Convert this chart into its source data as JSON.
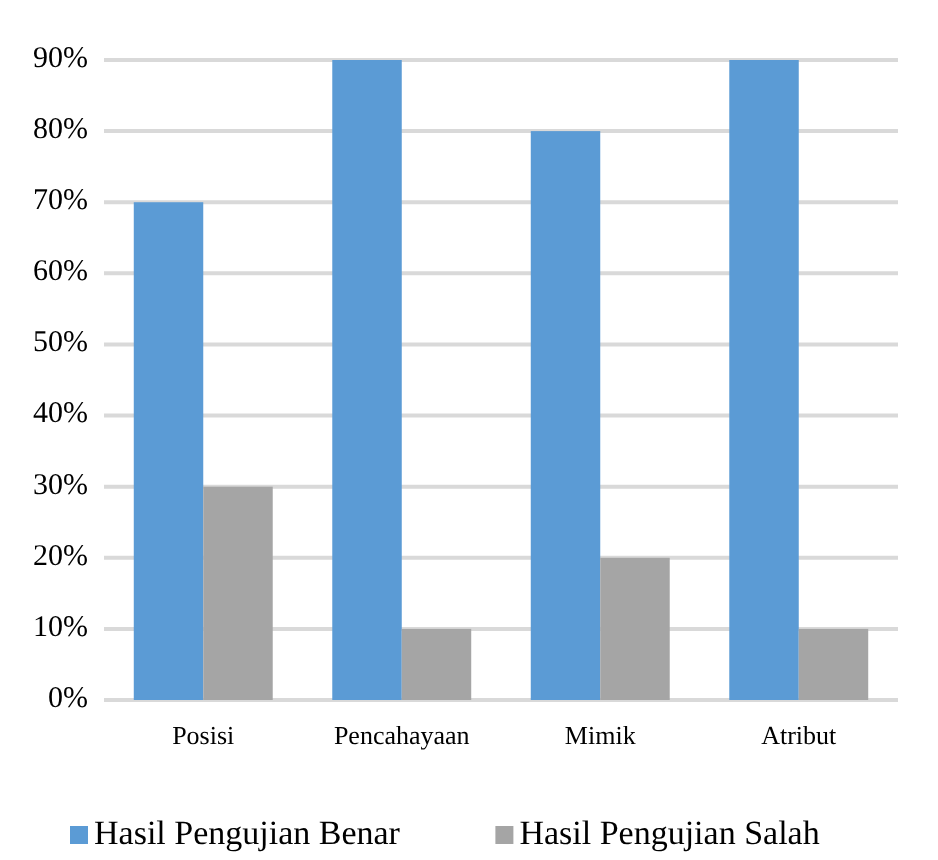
{
  "chart_data": {
    "type": "bar",
    "categories": [
      "Posisi",
      "Pencahayaan",
      "Mimik",
      "Atribut"
    ],
    "series": [
      {
        "name": "Hasil Pengujian Benar",
        "color": "#5b9bd5",
        "values": [
          70,
          90,
          80,
          90
        ]
      },
      {
        "name": "Hasil Pengujian Salah",
        "color": "#a5a5a5",
        "values": [
          30,
          10,
          20,
          10
        ]
      }
    ],
    "ylim": [
      0,
      90
    ],
    "yticks": [
      {
        "value": 0,
        "label": "0%"
      },
      {
        "value": 10,
        "label": "10%"
      },
      {
        "value": 20,
        "label": "20%"
      },
      {
        "value": 30,
        "label": "30%"
      },
      {
        "value": 40,
        "label": "40%"
      },
      {
        "value": 50,
        "label": "50%"
      },
      {
        "value": 60,
        "label": "60%"
      },
      {
        "value": 70,
        "label": "70%"
      },
      {
        "value": 80,
        "label": "80%"
      },
      {
        "value": 90,
        "label": "90%"
      }
    ],
    "grid": "y",
    "legend": "bottom"
  }
}
